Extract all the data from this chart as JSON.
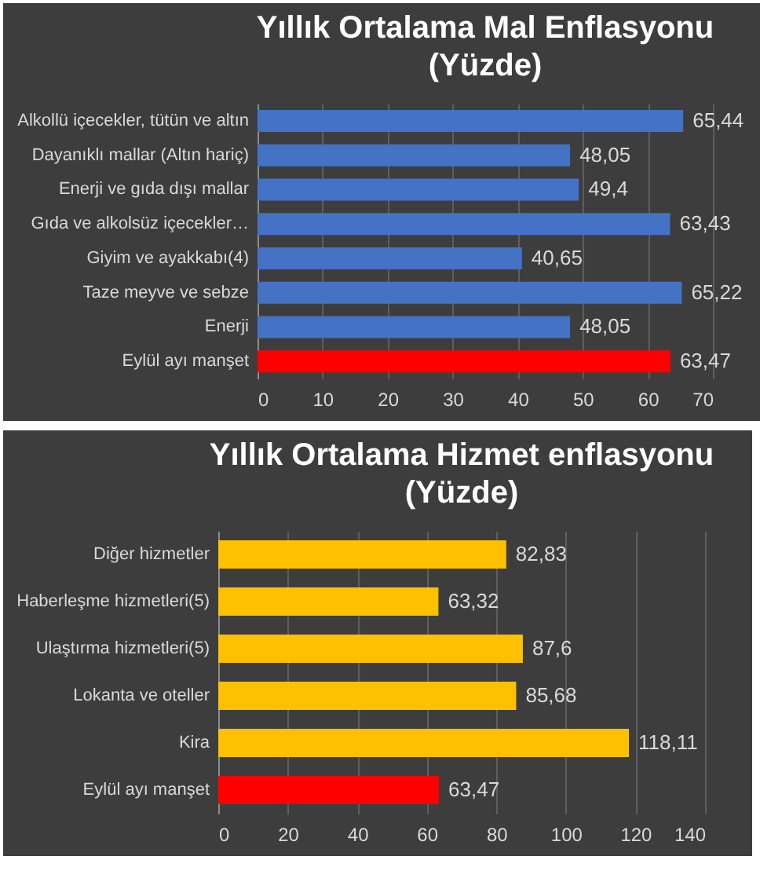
{
  "chart_data": [
    {
      "type": "bar",
      "orientation": "horizontal",
      "title": "Yıllık Ortalama Mal Enflasyonu",
      "subtitle": "(Yüzde)",
      "categories": [
        "Alkollü içecekler, tütün ve altın",
        "Dayanıklı mallar (Altın hariç)",
        "Enerji ve gıda dışı mallar",
        "Gıda ve alkolsüz içecekler…",
        "Giyim ve ayakkabı(4)",
        "Taze meyve ve sebze",
        "Enerji",
        "Eylül ayı manşet"
      ],
      "values": [
        65.44,
        48.05,
        49.4,
        63.43,
        40.65,
        65.22,
        48.05,
        63.47
      ],
      "value_labels": [
        "65,44",
        "48,05",
        "49,4",
        "63,43",
        "40,65",
        "65,22",
        "48,05",
        "63,47"
      ],
      "colors": [
        "#4472c4",
        "#4472c4",
        "#4472c4",
        "#4472c4",
        "#4472c4",
        "#4472c4",
        "#4472c4",
        "#ff0000"
      ],
      "xlim": [
        0,
        70
      ],
      "xticks": [
        0,
        10,
        20,
        30,
        40,
        50,
        60,
        70
      ],
      "grid": "x"
    },
    {
      "type": "bar",
      "orientation": "horizontal",
      "title": "Yıllık Ortalama Hizmet enflasyonu",
      "subtitle": "(Yüzde)",
      "categories": [
        "Diğer hizmetler",
        "Haberleşme hizmetleri(5)",
        "Ulaştırma hizmetleri(5)",
        "Lokanta ve oteller",
        "Kira",
        "Eylül ayı manşet"
      ],
      "values": [
        82.83,
        63.32,
        87.6,
        85.68,
        118.11,
        63.47
      ],
      "value_labels": [
        "82,83",
        "63,32",
        "87,6",
        "85,68",
        "118,11",
        "63,47"
      ],
      "colors": [
        "#ffc000",
        "#ffc000",
        "#ffc000",
        "#ffc000",
        "#ffc000",
        "#ff0000"
      ],
      "xlim": [
        0,
        140
      ],
      "xticks": [
        0,
        20,
        40,
        60,
        80,
        100,
        120,
        140
      ],
      "grid": "x"
    }
  ]
}
